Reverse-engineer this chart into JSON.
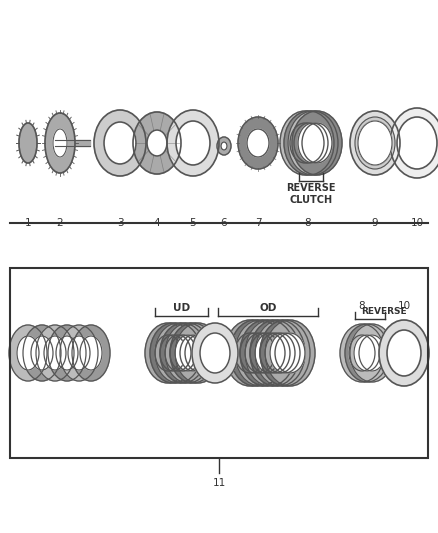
{
  "bg_color": "#ffffff",
  "line_color": "#333333",
  "gray_dark": "#555555",
  "gray_mid": "#888888",
  "gray_light": "#bbbbbb",
  "gray_fill": "#dddddd",
  "top_numbers": [
    "1",
    "2",
    "3",
    "4",
    "5",
    "6",
    "7",
    "8",
    "9",
    "10"
  ],
  "label_reverse_clutch": "REVERSE\nCLUTCH",
  "label_ud": "UD",
  "label_od": "OD",
  "label_reverse": "REVERSE",
  "number11": "11"
}
